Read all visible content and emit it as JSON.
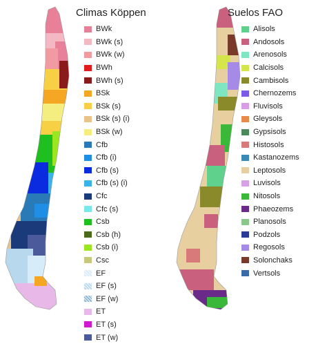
{
  "left_panel": {
    "title": "Climas Köppen",
    "legend": [
      {
        "label": "BWk",
        "color": "#e8809a"
      },
      {
        "label": "BWk (s)",
        "color": "#f4b8c4"
      },
      {
        "label": "BWk (w)",
        "color": "#f29aa2"
      },
      {
        "label": "BWh",
        "color": "#e31a1c"
      },
      {
        "label": "BWh (s)",
        "color": "#8b1a1a"
      },
      {
        "label": "BSk",
        "color": "#f5a623"
      },
      {
        "label": "BSk (s)",
        "color": "#f7d046"
      },
      {
        "label": "BSk (s) (i)",
        "color": "#e8c48a"
      },
      {
        "label": "BSk (w)",
        "color": "#f4ee80"
      },
      {
        "label": "Cfb",
        "color": "#2a7ab8"
      },
      {
        "label": "Cfb (i)",
        "color": "#1f8fe6"
      },
      {
        "label": "Cfb (s)",
        "color": "#0a2be0"
      },
      {
        "label": "Cfb (s) (i)",
        "color": "#3bb3e8"
      },
      {
        "label": "Cfc",
        "color": "#1b3a7a"
      },
      {
        "label": "Cfc (s)",
        "color": "#7ae8e8"
      },
      {
        "label": "Csb",
        "color": "#1fbf1f"
      },
      {
        "label": "Csb (h)",
        "color": "#4a6b1a"
      },
      {
        "label": "Csb (i)",
        "color": "#9be61e"
      },
      {
        "label": "Csc",
        "color": "#c8c87a"
      },
      {
        "label": "EF",
        "color": "#d6ecf8",
        "pattern": true
      },
      {
        "label": "EF (s)",
        "color": "#b8d8ee",
        "pattern": true
      },
      {
        "label": "EF (w)",
        "color": "#8fb8d8",
        "pattern": true
      },
      {
        "label": "ET",
        "color": "#e8b8e8"
      },
      {
        "label": "ET (s)",
        "color": "#d01ad0"
      },
      {
        "label": "ET (w)",
        "color": "#4a5a9a"
      }
    ]
  },
  "right_panel": {
    "title": "Suelos FAO",
    "legend": [
      {
        "label": "Alisols",
        "color": "#5fd18c"
      },
      {
        "label": "Andosols",
        "color": "#c8607e"
      },
      {
        "label": "Arenosols",
        "color": "#7ee6c0"
      },
      {
        "label": "Calcisols",
        "color": "#d4e64a"
      },
      {
        "label": "Cambisols",
        "color": "#8a8a2a"
      },
      {
        "label": "Chernozems",
        "color": "#7a5ae6"
      },
      {
        "label": "Fluvisols",
        "color": "#d89be6"
      },
      {
        "label": "Gleysols",
        "color": "#e88a4a"
      },
      {
        "label": "Gypsisols",
        "color": "#4a8a5a"
      },
      {
        "label": "Histosols",
        "color": "#d87a7a"
      },
      {
        "label": "Kastanozems",
        "color": "#3a8ab8"
      },
      {
        "label": "Leptosols",
        "color": "#e8cfa0"
      },
      {
        "label": "Luvisols",
        "color": "#d8a0e8"
      },
      {
        "label": "Nitosols",
        "color": "#3ab83a"
      },
      {
        "label": "Phaeozems",
        "color": "#6a2a8a"
      },
      {
        "label": "Planosols",
        "color": "#8ac88a"
      },
      {
        "label": "Podzols",
        "color": "#2a3a9a"
      },
      {
        "label": "Regosols",
        "color": "#a68ae8"
      },
      {
        "label": "Solonchaks",
        "color": "#7a3a2a"
      },
      {
        "label": "Vertsols",
        "color": "#3a6aa8"
      }
    ]
  }
}
